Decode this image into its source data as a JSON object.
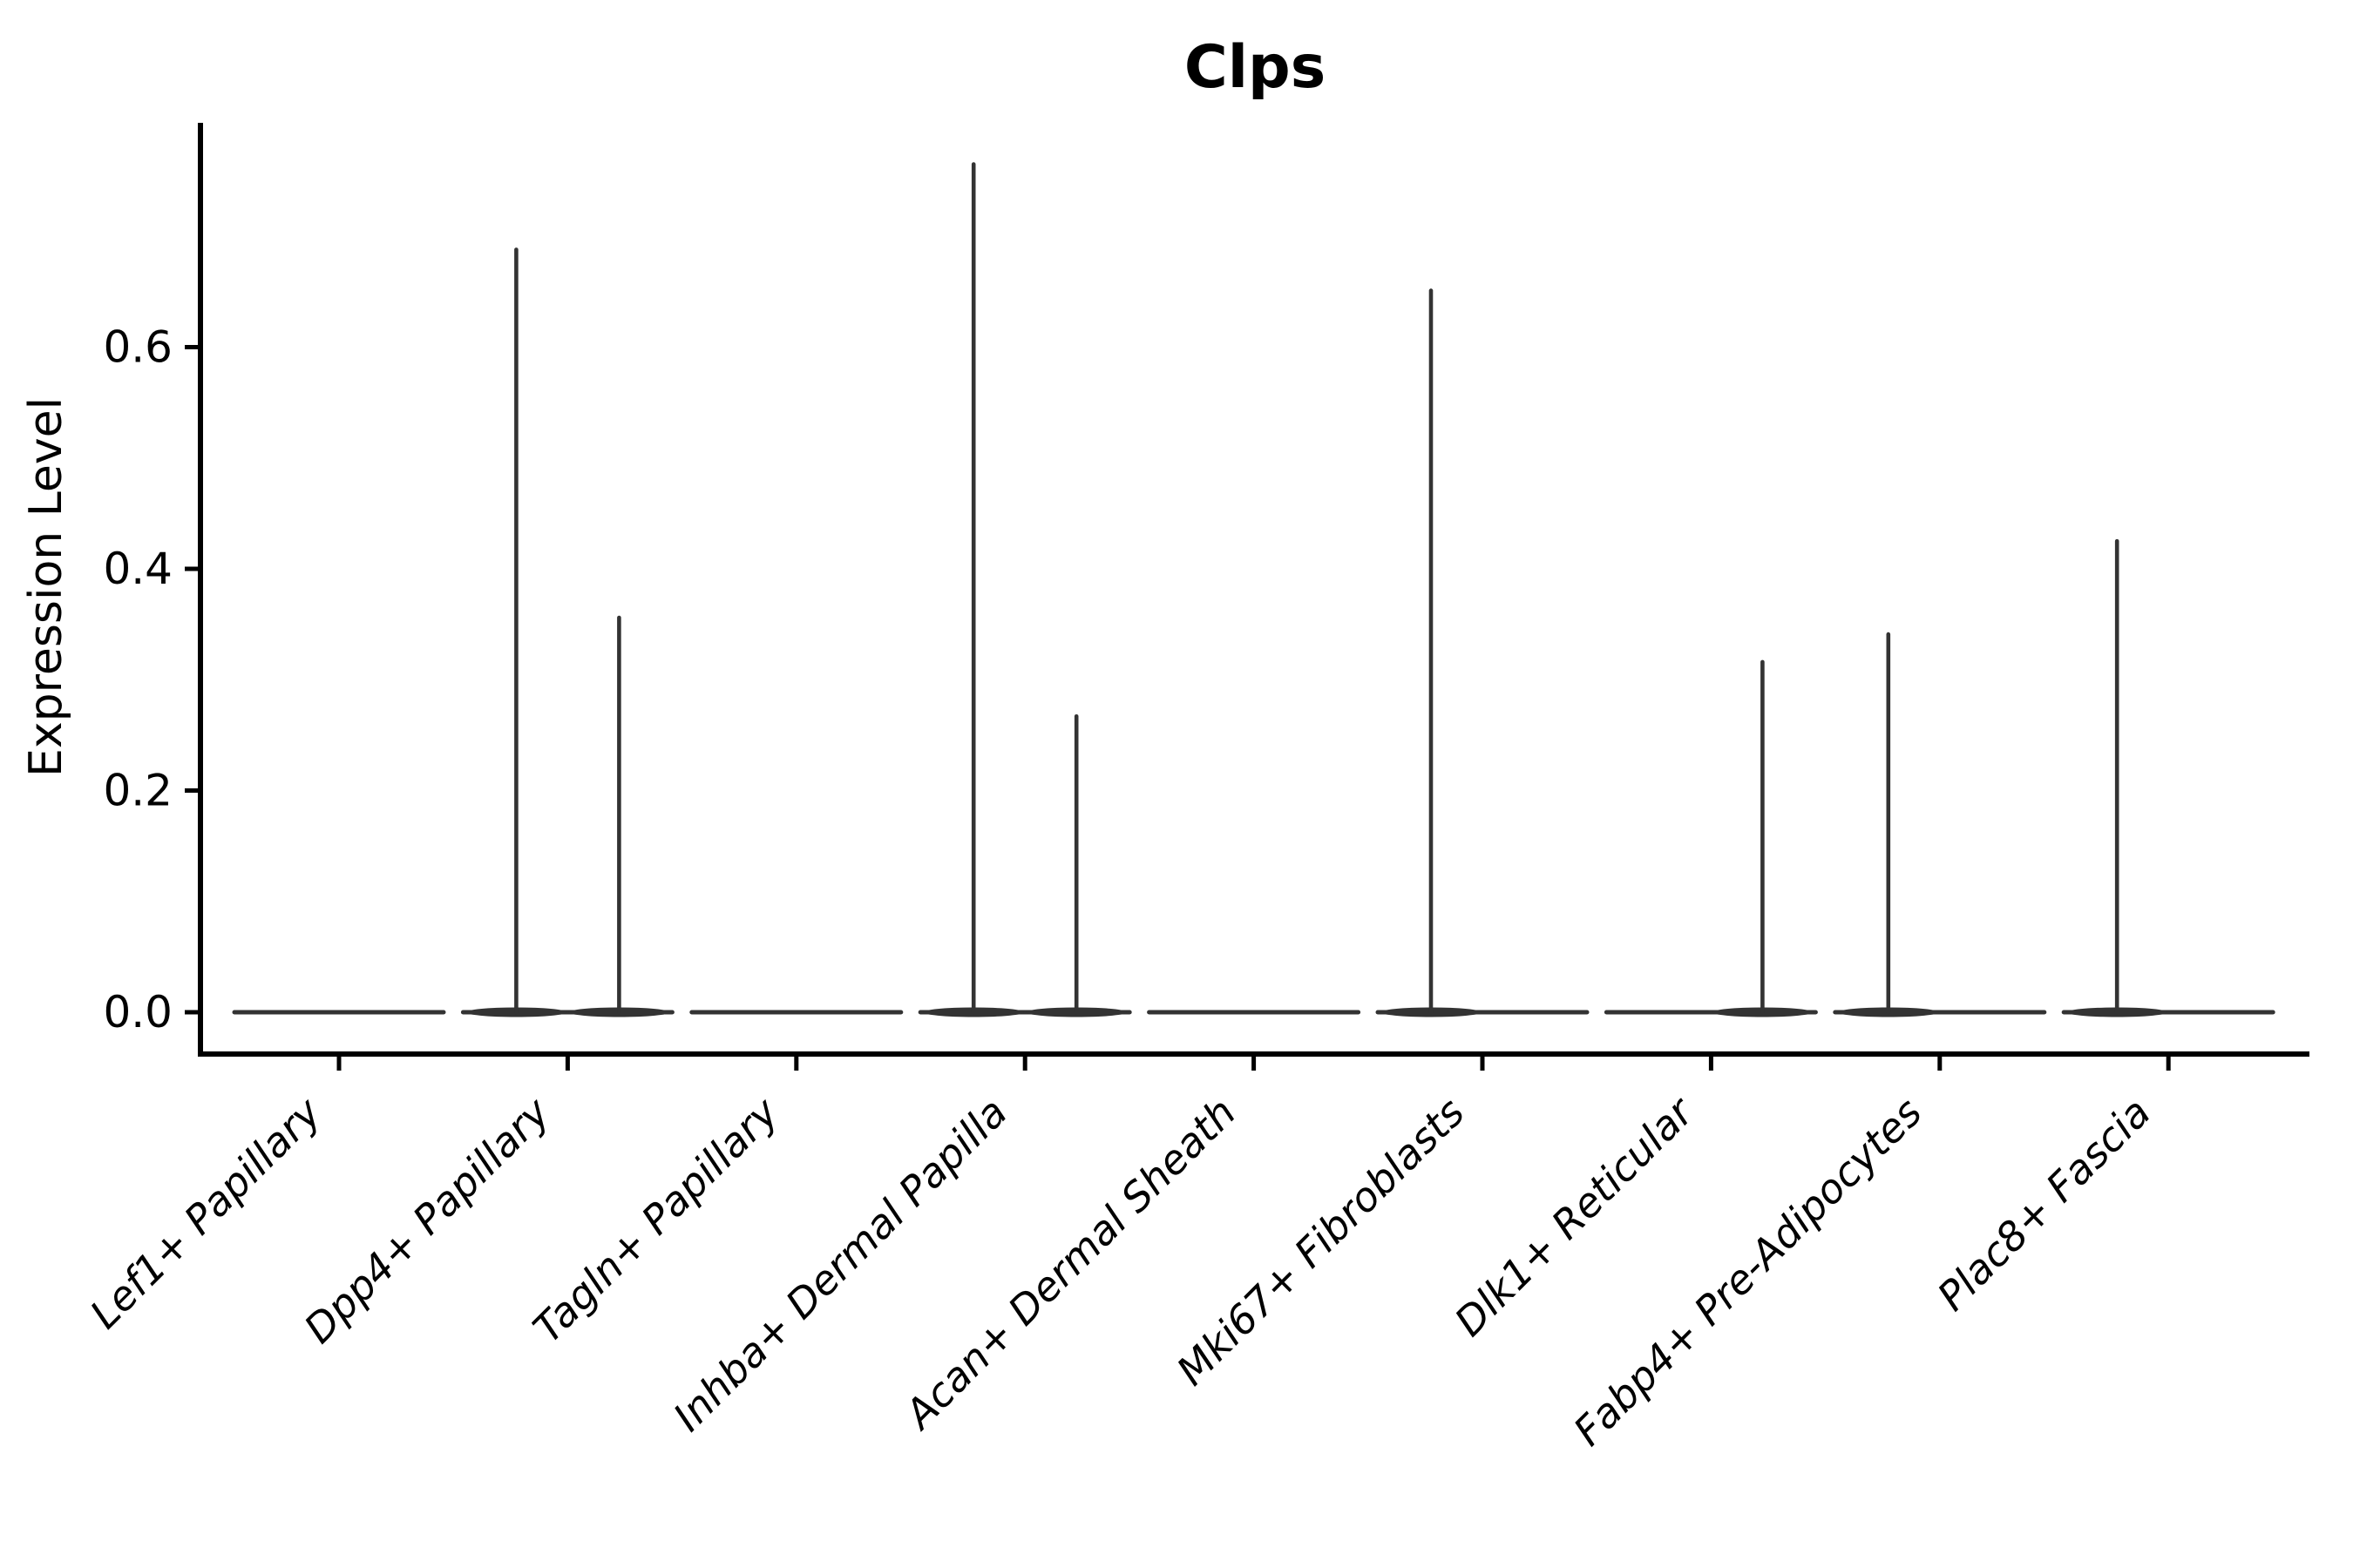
{
  "figure": {
    "title": "Clps",
    "ylabel": "Expression Level"
  },
  "chart_data": {
    "type": "violin",
    "title": "Clps",
    "xlabel": "",
    "ylabel": "Expression Level",
    "yticks": [
      0.0,
      0.2,
      0.4,
      0.6
    ],
    "ytick_labels": [
      "0.0",
      "0.2",
      "0.4",
      "0.6"
    ],
    "ylim": [
      -0.036,
      0.802
    ],
    "grid": false,
    "legend": "none",
    "categories": [
      "Lef1+ Papillary",
      "Dpp4+ Papillary",
      "Tagln+ Papillary",
      "Inhba+ Dermal Papilla",
      "Acan+ Dermal Sheath",
      "Mki67+ Fibroblasts",
      "Dlk1+ Reticular",
      "Fabp4+ Pre-Adipocytes",
      "Plac8+ Fascia"
    ],
    "series": [
      {
        "category": "Lef1+ Papillary",
        "violins": [
          {
            "group": "left",
            "max_expression": 0
          },
          {
            "group": "right",
            "max_expression": 0
          }
        ]
      },
      {
        "category": "Dpp4+ Papillary",
        "violins": [
          {
            "group": "left",
            "max_expression": 0.688
          },
          {
            "group": "right",
            "max_expression": 0.356
          }
        ]
      },
      {
        "category": "Tagln+ Papillary",
        "violins": [
          {
            "group": "left",
            "max_expression": 0
          },
          {
            "group": "right",
            "max_expression": 0
          }
        ]
      },
      {
        "category": "Inhba+ Dermal Papilla",
        "violins": [
          {
            "group": "left",
            "max_expression": 0.765
          },
          {
            "group": "right",
            "max_expression": 0.267
          }
        ]
      },
      {
        "category": "Acan+ Dermal Sheath",
        "violins": [
          {
            "group": "left",
            "max_expression": 0
          },
          {
            "group": "right",
            "max_expression": 0
          }
        ]
      },
      {
        "category": "Mki67+ Fibroblasts",
        "violins": [
          {
            "group": "left",
            "max_expression": 0.651
          },
          {
            "group": "right",
            "max_expression": 0
          }
        ]
      },
      {
        "category": "Dlk1+ Reticular",
        "violins": [
          {
            "group": "left",
            "max_expression": 0
          },
          {
            "group": "right",
            "max_expression": 0.316
          }
        ]
      },
      {
        "category": "Fabp4+ Pre-Adipocytes",
        "violins": [
          {
            "group": "left",
            "max_expression": 0.341
          },
          {
            "group": "right",
            "max_expression": 0
          }
        ]
      },
      {
        "category": "Plac8+ Fascia",
        "violins": [
          {
            "group": "left",
            "max_expression": 0.425
          },
          {
            "group": "right",
            "max_expression": 0
          }
        ]
      }
    ],
    "colors": {
      "violin": "#333333",
      "axis": "#000000",
      "text": "#000000",
      "background": "#ffffff"
    }
  }
}
